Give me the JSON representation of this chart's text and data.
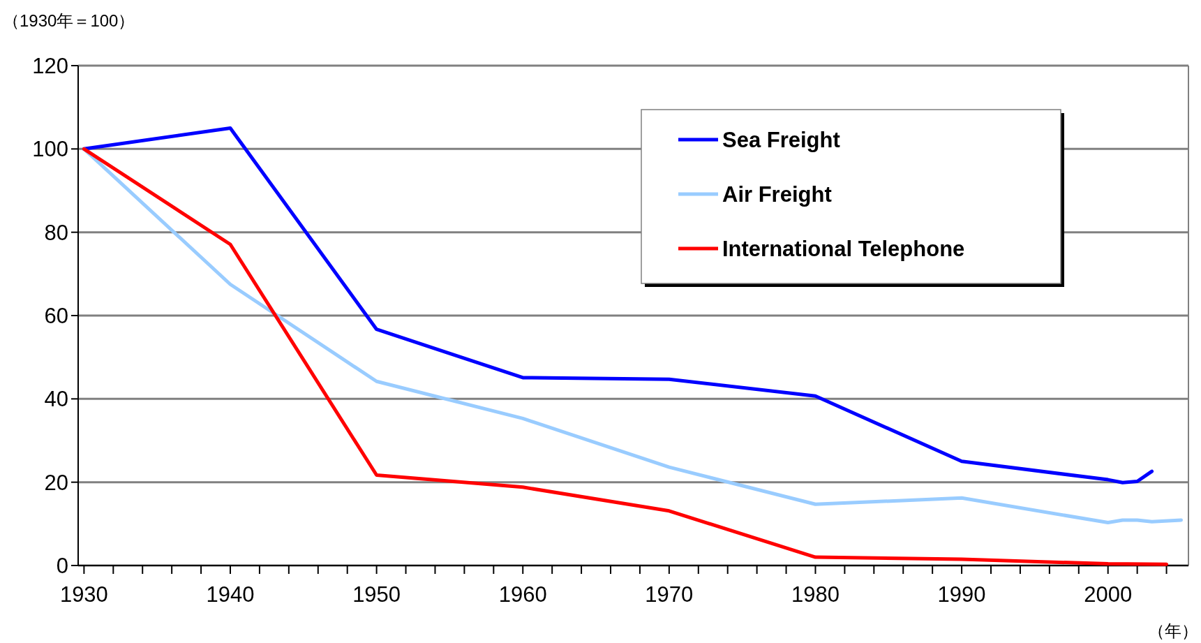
{
  "chart_data": {
    "type": "line",
    "ylabel": "（1930年＝100）",
    "xlabel": "（年）",
    "xlim": [
      1929.6,
      2005.5
    ],
    "ylim": [
      0,
      120
    ],
    "xticks": [
      1930,
      {
        "value": 1932,
        "label": null
      },
      {
        "value": 1934,
        "label": null
      },
      {
        "value": 1936,
        "label": null
      },
      {
        "value": 1938,
        "label": null
      },
      1940,
      {
        "value": 1942,
        "label": null
      },
      {
        "value": 1944,
        "label": null
      },
      {
        "value": 1946,
        "label": null
      },
      {
        "value": 1948,
        "label": null
      },
      1950,
      {
        "value": 1952,
        "label": null
      },
      {
        "value": 1954,
        "label": null
      },
      {
        "value": 1956,
        "label": null
      },
      {
        "value": 1958,
        "label": null
      },
      1960,
      {
        "value": 1962,
        "label": null
      },
      {
        "value": 1964,
        "label": null
      },
      {
        "value": 1966,
        "label": null
      },
      {
        "value": 1968,
        "label": null
      },
      1970,
      {
        "value": 1972,
        "label": null
      },
      {
        "value": 1974,
        "label": null
      },
      {
        "value": 1976,
        "label": null
      },
      {
        "value": 1978,
        "label": null
      },
      1980,
      {
        "value": 1982,
        "label": null
      },
      {
        "value": 1984,
        "label": null
      },
      {
        "value": 1986,
        "label": null
      },
      {
        "value": 1988,
        "label": null
      },
      1990,
      {
        "value": 1992,
        "label": null
      },
      {
        "value": 1994,
        "label": null
      },
      {
        "value": 1996,
        "label": null
      },
      {
        "value": 1998,
        "label": null
      },
      2000,
      {
        "value": 2002,
        "label": null
      },
      {
        "value": 2004,
        "label": null
      }
    ],
    "yticks": [
      0,
      20,
      40,
      60,
      80,
      100,
      120
    ],
    "grid": "y",
    "legend": "top right",
    "marker": "none",
    "line_style": "solid",
    "series": [
      {
        "name": "Sea Freight",
        "color": "#0000ff",
        "x": [
          1930,
          1940,
          1950,
          1960,
          1970,
          1980,
          1990,
          2000,
          2001,
          2002,
          2003
        ],
        "values": [
          100,
          105,
          56.7,
          45.1,
          44.7,
          40.7,
          25.0,
          20.6,
          19.9,
          20.2,
          22.6
        ]
      },
      {
        "name": "Air Freight",
        "color": "#99ccff",
        "x": [
          1930,
          1940,
          1950,
          1960,
          1970,
          1980,
          1990,
          2000,
          2001,
          2002,
          2003,
          2005
        ],
        "values": [
          100,
          67.5,
          44.2,
          35.3,
          23.6,
          14.7,
          16.2,
          10.3,
          10.9,
          10.9,
          10.5,
          10.9
        ]
      },
      {
        "name": "International Telephone",
        "color": "#ff0000",
        "x": [
          1930,
          1940,
          1950,
          1960,
          1970,
          1980,
          1990,
          2000,
          2004
        ],
        "values": [
          100,
          77.1,
          21.7,
          18.8,
          13.1,
          2.0,
          1.5,
          0.4,
          0.3
        ]
      }
    ]
  }
}
